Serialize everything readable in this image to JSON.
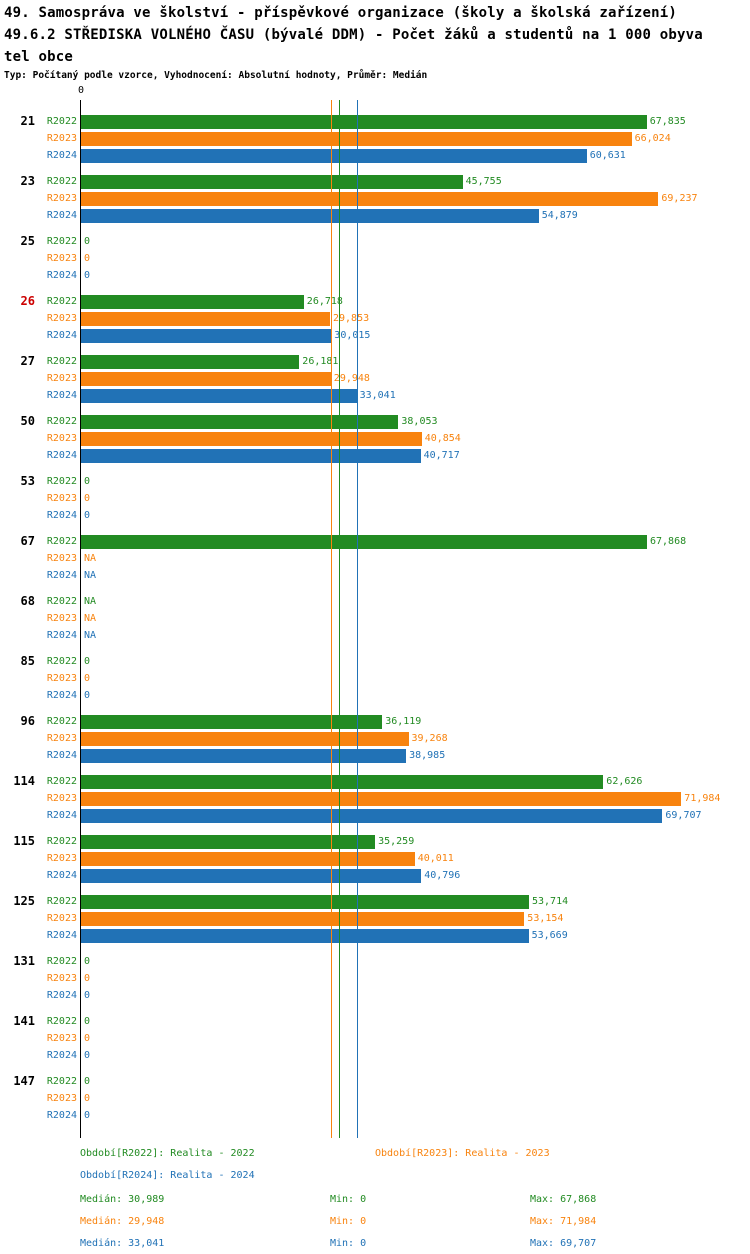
{
  "header": {
    "title_line1": "49. Samospráva ve školství - příspěvkové organizace (školy a školská zařízení)",
    "title_line2": "49.6.2 STŘEDISKA VOLNÉHO ČASU (bývalé DDM) - Počet žáků a studentů na 1 000 obyva",
    "title_line3": "tel obce",
    "subtitle": "Typ: Počítaný podle vzorce, Vyhodnocení: Absolutní hodnoty, Průměr: Medián"
  },
  "chart_data": {
    "type": "bar",
    "orientation": "horizontal",
    "title": "49.6.2 STŘEDISKA VOLNÉHO ČASU (bývalé DDM) - Počet žáků a studentů na 1 000 obyvatel obce",
    "xlabel": "",
    "ylabel": "",
    "xlim": [
      0,
      72.6
    ],
    "x_axis": {
      "zero_label": "0"
    },
    "grid": false,
    "legend_position": "bottom",
    "series": [
      {
        "name": "R2022",
        "color": "#228b22",
        "legend": "Období[R2022]: Realita - 2022",
        "median_value": 30.989,
        "stats": {
          "median": "Medián: 30,989",
          "min": "Min: 0",
          "max": "Max: 67,868"
        }
      },
      {
        "name": "R2023",
        "color": "#f8830e",
        "legend": "Období[R2023]: Realita - 2023",
        "median_value": 29.948,
        "stats": {
          "median": "Medián: 29,948",
          "min": "Min: 0",
          "max": "Max: 71,984"
        }
      },
      {
        "name": "R2024",
        "color": "#2172b6",
        "legend": "Období[R2024]: Realita - 2024",
        "median_value": 33.041,
        "stats": {
          "median": "Medián: 33,041",
          "min": "Min: 0",
          "max": "Max: 69,707"
        }
      }
    ],
    "groups": [
      {
        "label": "21",
        "highlight": false,
        "values": [
          67.835,
          66.024,
          60.631
        ],
        "display": [
          "67,835",
          "66,024",
          "60,631"
        ]
      },
      {
        "label": "23",
        "highlight": false,
        "values": [
          45.755,
          69.237,
          54.879
        ],
        "display": [
          "45,755",
          "69,237",
          "54,879"
        ]
      },
      {
        "label": "25",
        "highlight": false,
        "values": [
          0,
          0,
          0
        ],
        "display": [
          "0",
          "0",
          "0"
        ]
      },
      {
        "label": "26",
        "highlight": true,
        "values": [
          26.718,
          29.853,
          30.015
        ],
        "display": [
          "26,718",
          "29,853",
          "30,015"
        ]
      },
      {
        "label": "27",
        "highlight": false,
        "values": [
          26.181,
          29.948,
          33.041
        ],
        "display": [
          "26,181",
          "29,948",
          "33,041"
        ]
      },
      {
        "label": "50",
        "highlight": false,
        "values": [
          38.053,
          40.854,
          40.717
        ],
        "display": [
          "38,053",
          "40,854",
          "40,717"
        ]
      },
      {
        "label": "53",
        "highlight": false,
        "values": [
          0,
          0,
          0
        ],
        "display": [
          "0",
          "0",
          "0"
        ]
      },
      {
        "label": "67",
        "highlight": false,
        "values": [
          67.868,
          null,
          null
        ],
        "display": [
          "67,868",
          "NA",
          "NA"
        ]
      },
      {
        "label": "68",
        "highlight": false,
        "values": [
          null,
          null,
          null
        ],
        "display": [
          "NA",
          "NA",
          "NA"
        ]
      },
      {
        "label": "85",
        "highlight": false,
        "values": [
          0,
          0,
          0
        ],
        "display": [
          "0",
          "0",
          "0"
        ]
      },
      {
        "label": "96",
        "highlight": false,
        "values": [
          36.119,
          39.268,
          38.985
        ],
        "display": [
          "36,119",
          "39,268",
          "38,985"
        ]
      },
      {
        "label": "114",
        "highlight": false,
        "values": [
          62.626,
          71.984,
          69.707
        ],
        "display": [
          "62,626",
          "71,984",
          "69,707"
        ]
      },
      {
        "label": "115",
        "highlight": false,
        "values": [
          35.259,
          40.011,
          40.796
        ],
        "display": [
          "35,259",
          "40,011",
          "40,796"
        ]
      },
      {
        "label": "125",
        "highlight": false,
        "values": [
          53.714,
          53.154,
          53.669
        ],
        "display": [
          "53,714",
          "53,154",
          "53,669"
        ]
      },
      {
        "label": "131",
        "highlight": false,
        "values": [
          0,
          0,
          0
        ],
        "display": [
          "0",
          "0",
          "0"
        ]
      },
      {
        "label": "141",
        "highlight": false,
        "values": [
          0,
          0,
          0
        ],
        "display": [
          "0",
          "0",
          "0"
        ]
      },
      {
        "label": "147",
        "highlight": false,
        "values": [
          0,
          0,
          0
        ],
        "display": [
          "0",
          "0",
          "0"
        ]
      }
    ]
  }
}
